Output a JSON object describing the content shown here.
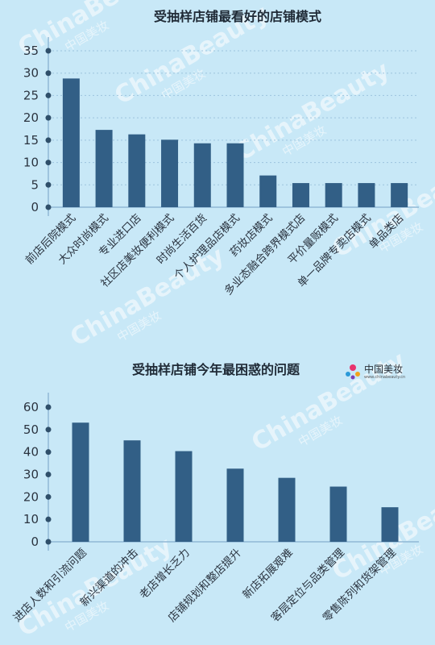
{
  "watermark": {
    "text": "ChinaBeauty",
    "sub": "中国美妆"
  },
  "logo": {
    "name": "中国美妆",
    "url": "www.chinabeauty.cn"
  },
  "colors": {
    "bar": "#325f86",
    "axis": "#8fb8d6",
    "background": "#c8e8f7"
  },
  "chart_data": [
    {
      "type": "bar",
      "title": "受抽样店铺最看好的店铺模式",
      "xlabel": "",
      "ylabel": "",
      "ylim": [
        0,
        35
      ],
      "yticks": [
        0,
        5,
        10,
        15,
        20,
        25,
        30,
        35
      ],
      "grid": true,
      "categories": [
        "前店后院模式",
        "大众时尚模式",
        "专业进口店",
        "社区店美妆便利模式",
        "时尚生活百货",
        "个人护理品店模式",
        "药妆店模式",
        "多业态融合跨界模式店",
        "平价量贩模式",
        "单一品牌专卖店模式",
        "单品类店"
      ],
      "values": [
        28.8,
        17.3,
        16.3,
        15.1,
        14.3,
        14.3,
        7.1,
        5.4,
        5.4,
        5.4,
        5.4
      ]
    },
    {
      "type": "bar",
      "title": "受抽样店铺今年最困惑的问题",
      "xlabel": "",
      "ylabel": "",
      "ylim": [
        0,
        60
      ],
      "yticks": [
        0,
        10,
        20,
        30,
        40,
        50,
        60
      ],
      "grid": false,
      "categories": [
        "进店人数和引流问题",
        "新兴渠道的冲击",
        "老店增长乏力",
        "店铺规划和整店提升",
        "新店拓展艰难",
        "客层定位与品类管理",
        "零售陈列和货架管理"
      ],
      "values": [
        53.1,
        45.2,
        40.4,
        32.6,
        28.5,
        24.6,
        15.4
      ]
    }
  ]
}
